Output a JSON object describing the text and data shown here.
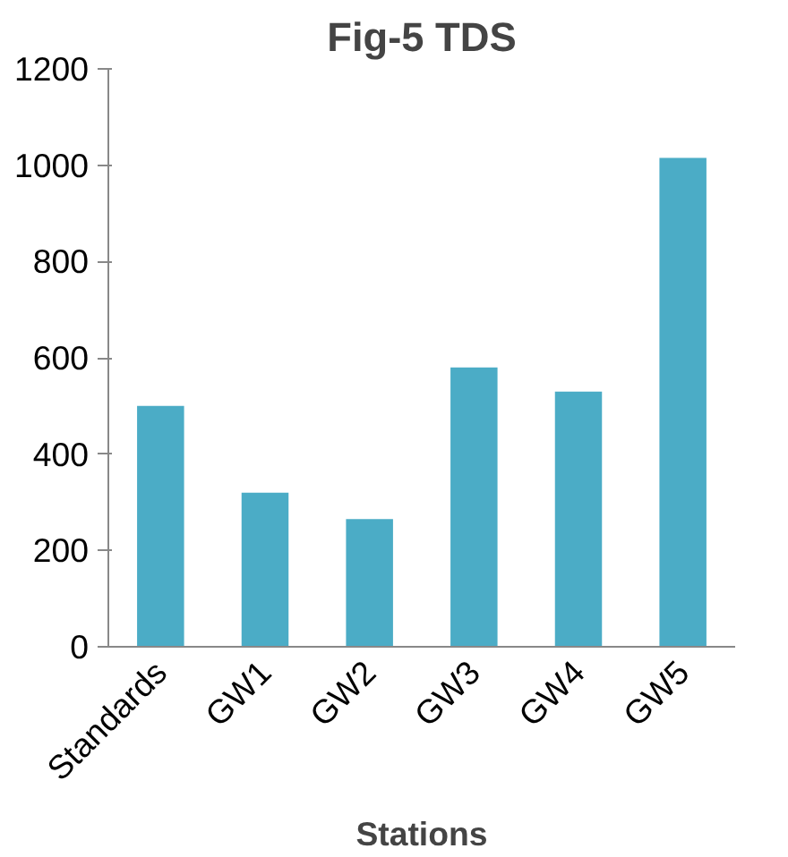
{
  "chart_data": {
    "type": "bar",
    "title": "Fig-5 TDS",
    "xlabel": "Stations",
    "categories": [
      "Standards",
      "GW1",
      "GW2",
      "GW3",
      "GW4",
      "GW5"
    ],
    "values": [
      500,
      320,
      265,
      580,
      530,
      1015
    ],
    "color": "#4bacc6",
    "ylim": [
      0,
      1200
    ],
    "yticks": [
      0,
      200,
      400,
      600,
      800,
      1000,
      1200
    ],
    "grid": false
  }
}
